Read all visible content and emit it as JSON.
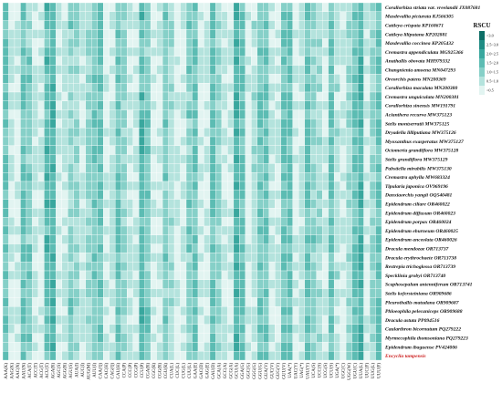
{
  "chart_data": {
    "type": "heatmap",
    "title": "",
    "xlabel": "",
    "ylabel": "",
    "legend": {
      "title": "RSCU",
      "placement": "top-right",
      "bins": [
        ">3.0",
        "2.5~3.0",
        "2.0~2.5",
        "1.5~2.0",
        "1.0~1.5",
        "0.5~1.0",
        "<0.5"
      ],
      "colors": [
        "#0d6e66",
        "#1f8c84",
        "#39a79e",
        "#5cbcb3",
        "#86d0c8",
        "#b4e3dd",
        "#e2f4f1"
      ]
    },
    "rows": [
      {
        "label": "Corallorhiza striata var. vreelandii JX087681",
        "color": "#111111"
      },
      {
        "label": "Masdevallia picturata KJ566305",
        "color": "#111111"
      },
      {
        "label": "Cattleya crispata KP168671",
        "color": "#111111"
      },
      {
        "label": "Cattleya liliputana KP202881",
        "color": "#111111"
      },
      {
        "label": "Masdevallia coccinea KP205432",
        "color": "#111111"
      },
      {
        "label": "Cremastra appendiculata MG925366",
        "color": "#111111"
      },
      {
        "label": "Anathallis obovata MH979332",
        "color": "#111111"
      },
      {
        "label": "Changnienia amoena MN047293",
        "color": "#111111"
      },
      {
        "label": "Oreorchis patens MN200369",
        "color": "#111111"
      },
      {
        "label": "Corallorhiza maculata MN200380",
        "color": "#111111"
      },
      {
        "label": "Cremastra unguiculata MN200381",
        "color": "#111111"
      },
      {
        "label": "Corallorhiza sinensis MW191791",
        "color": "#111111"
      },
      {
        "label": "Acianthera recurva MW375123",
        "color": "#111111"
      },
      {
        "label": "Stelis montserratii MW375125",
        "color": "#111111"
      },
      {
        "label": "Dryadella lilliputiana MW375126",
        "color": "#111111"
      },
      {
        "label": "Myoxanthus exasperatus MW375127",
        "color": "#111111"
      },
      {
        "label": "Octomeria grandiflora MW375128",
        "color": "#111111"
      },
      {
        "label": "Stelis grandiflora MW375129",
        "color": "#111111"
      },
      {
        "label": "Pabstiella mirabilis MW375130",
        "color": "#111111"
      },
      {
        "label": "Cremastra aphylla MW683324",
        "color": "#111111"
      },
      {
        "label": "Tipularia japonica OV969196",
        "color": "#111111"
      },
      {
        "label": "Danxiaorchis yangii OQ540481",
        "color": "#111111"
      },
      {
        "label": "Epidendrum ciliare OR460022",
        "color": "#111111"
      },
      {
        "label": "Epidendrum diffusum OR460023",
        "color": "#111111"
      },
      {
        "label": "Epidendrum porpax OR460024",
        "color": "#111111"
      },
      {
        "label": "Epidendrum eburneum OR460025",
        "color": "#111111"
      },
      {
        "label": "Epidendrum anceolata OR460026",
        "color": "#111111"
      },
      {
        "label": "Dracula mendozae OR713737",
        "color": "#111111"
      },
      {
        "label": "Dracula erythrochaete OR713738",
        "color": "#111111"
      },
      {
        "label": "Restrepia trichoglossa OR713739",
        "color": "#111111"
      },
      {
        "label": "Specklinia grobyi OR713740",
        "color": "#111111"
      },
      {
        "label": "Scaphosepalum antenniferum OR713741",
        "color": "#111111"
      },
      {
        "label": "Stelis kefersteiniana OR909686",
        "color": "#111111"
      },
      {
        "label": "Pleurothallis matudana OR909687",
        "color": "#111111"
      },
      {
        "label": "Phloeophila pelecaniceps OR909688",
        "color": "#111111"
      },
      {
        "label": "Dracula astuta PP094516",
        "color": "#111111"
      },
      {
        "label": "Caularthron bicornutum PQ279222",
        "color": "#111111"
      },
      {
        "label": "Myrmecophila thomsoniana PQ279223",
        "color": "#111111"
      },
      {
        "label": "Epidendrum ibaguense PV424006",
        "color": "#111111"
      },
      {
        "label": "Encyclia tampensis",
        "color": "#cc1f1f"
      }
    ],
    "columns": [
      "AAA(K)",
      "AAG(K)",
      "AAC(N)",
      "AAU(N)",
      "ACA(T)",
      "ACC(T)",
      "ACG(T)",
      "ACU(T)",
      "AGA(R)",
      "AGC(S)",
      "AGG(R)",
      "AGU(S)",
      "AUA(I)",
      "AUC(I)",
      "AUG(M)",
      "AUU(I)",
      "CAA(Q)",
      "CAC(H)",
      "CAG(Q)",
      "CAU(H)",
      "CCA(P)",
      "CCC(P)",
      "CCG(P)",
      "CCU(P)",
      "CGA(R)",
      "CGC(R)",
      "CGG(R)",
      "CGU(R)",
      "CUA(L)",
      "CUC(L)",
      "CUG(L)",
      "CUU(L)",
      "GAA(E)",
      "GAC(D)",
      "GAG(E)",
      "GAU(D)",
      "GCA(A)",
      "GCC(A)",
      "GCG(A)",
      "GCU(A)",
      "GGA(G)",
      "GGC(G)",
      "GGG(G)",
      "GGU(G)",
      "GUA(V)",
      "GUC(V)",
      "GUG(V)",
      "GUU(V)",
      "UAA(*)",
      "UAC(Y)",
      "UAG(*)",
      "UAU(Y)",
      "UCA(S)",
      "UCC(S)",
      "UCG(S)",
      "UCU(S)",
      "UGA(*)",
      "UGC(C)",
      "UGG(W)",
      "UGU(C)",
      "UUA(L)",
      "UUC(F)",
      "UUG(L)",
      "UUU(F)"
    ],
    "column_means": [
      1.5,
      0.5,
      0.45,
      1.55,
      1.2,
      0.6,
      0.45,
      1.75,
      1.85,
      0.35,
      0.6,
      1.2,
      1.1,
      0.6,
      1.0,
      1.3,
      1.5,
      0.4,
      0.5,
      1.6,
      1.1,
      0.65,
      0.5,
      1.75,
      1.3,
      0.35,
      0.5,
      1.3,
      0.85,
      0.45,
      0.4,
      1.25,
      1.5,
      0.4,
      0.5,
      1.6,
      1.15,
      0.6,
      0.4,
      1.85,
      1.6,
      0.35,
      0.7,
      1.35,
      1.45,
      0.5,
      0.5,
      1.55,
      1.6,
      0.35,
      0.65,
      1.65,
      1.2,
      0.8,
      0.5,
      1.5,
      0.75,
      0.35,
      1.0,
      1.65,
      1.85,
      0.45,
      1.1,
      1.55
    ],
    "grid": false
  }
}
